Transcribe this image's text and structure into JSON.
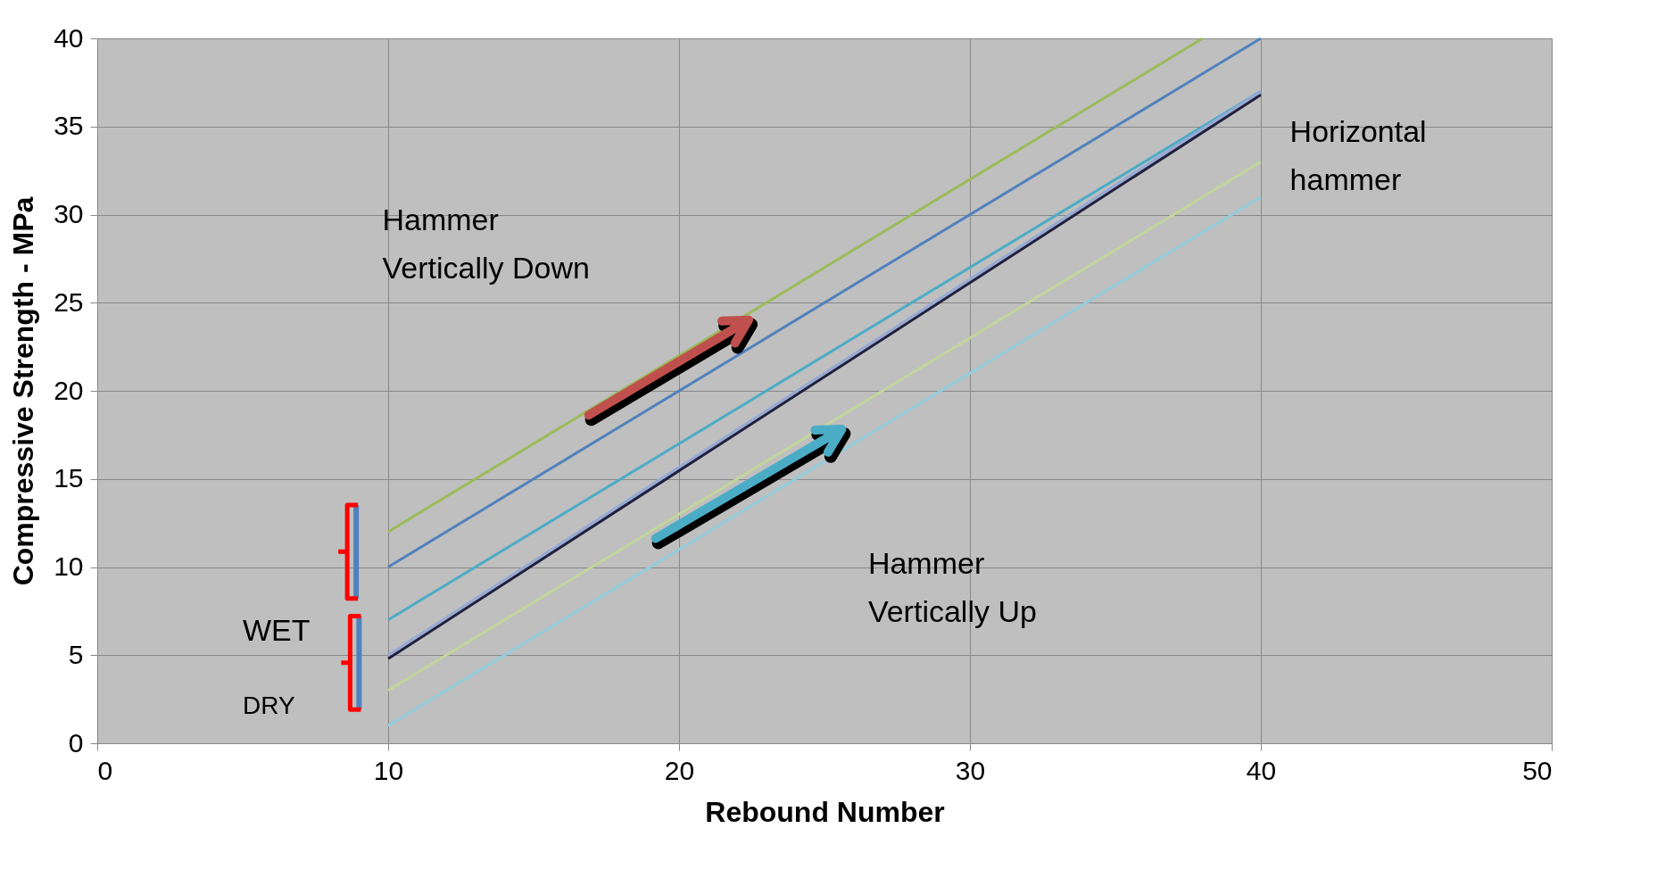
{
  "chart_data": {
    "type": "line",
    "xlabel": "Rebound Number",
    "ylabel": "Compressive Strength - MPa",
    "xlim": [
      0,
      50
    ],
    "xticks": [
      0,
      10,
      20,
      30,
      40,
      50
    ],
    "ylim": [
      0,
      40
    ],
    "yticks": [
      0,
      5,
      10,
      15,
      20,
      25,
      30,
      35,
      40
    ],
    "grid": true,
    "legend": false,
    "series": [
      {
        "color": "#9bbb59",
        "x": [
          10,
          38
        ],
        "values": [
          12,
          40
        ]
      },
      {
        "color": "#4f81bd",
        "x": [
          10,
          40
        ],
        "values": [
          10,
          40
        ]
      },
      {
        "color": "#4bacc6",
        "x": [
          10,
          40
        ],
        "values": [
          7,
          37
        ]
      },
      {
        "color": "#95a9d6",
        "x": [
          10,
          40
        ],
        "values": [
          5,
          37
        ]
      },
      {
        "color": "#1f1f3f",
        "x": [
          10,
          40
        ],
        "values": [
          4.8,
          36.8
        ]
      },
      {
        "color": "#c3d69b",
        "x": [
          10,
          40
        ],
        "values": [
          3,
          33
        ]
      },
      {
        "color": "#93cddd",
        "x": [
          10,
          40
        ],
        "values": [
          1,
          31
        ]
      }
    ],
    "annotations": [
      "Hammer\nVertically Down",
      "Horizontal\nhammer",
      "Hammer\nVertically Up",
      "WET",
      "DRY"
    ]
  }
}
